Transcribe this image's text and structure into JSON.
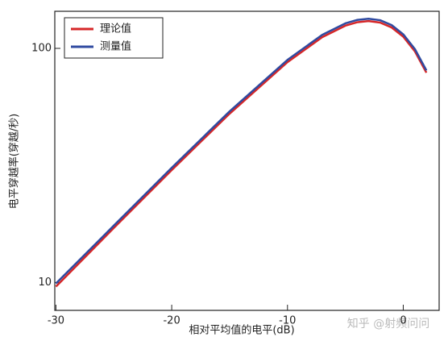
{
  "chart_data": {
    "type": "line",
    "x_label": "相对平均值的电平(dB)",
    "y_label": "电平穿越率(穿越/秒)",
    "x": [
      -30,
      -25,
      -20,
      -15,
      -10,
      -7,
      -5,
      -4,
      -3,
      -2,
      -1,
      0,
      1,
      2
    ],
    "series": [
      {
        "name": "理论值",
        "color": "#d62728",
        "values": [
          9.6,
          17.1,
          30.2,
          52.6,
          87.3,
          111.6,
          125.0,
          129.2,
          130.8,
          128.9,
          122.8,
          112.2,
          97.2,
          78.7
        ]
      },
      {
        "name": "测量值",
        "color": "#2f4aa0",
        "values": [
          9.9,
          17.5,
          30.9,
          53.8,
          89.3,
          114.2,
          127.9,
          132.2,
          133.8,
          131.9,
          125.7,
          114.8,
          99.4,
          80.5
        ]
      }
    ],
    "xlim": [
      -30.1,
      3.1
    ],
    "xticks": [
      -30,
      -20,
      -10,
      0
    ],
    "ylim": [
      7.6,
      144
    ],
    "yticks": [
      10,
      100
    ],
    "log_y": true,
    "legend": "upper-left",
    "watermark": "知乎 @射频问问"
  }
}
